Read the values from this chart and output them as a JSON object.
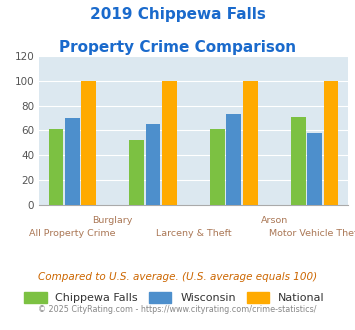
{
  "title_line1": "2019 Chippewa Falls",
  "title_line2": "Property Crime Comparison",
  "title_color": "#1a6acc",
  "group_data": [
    [
      61,
      70,
      100
    ],
    [
      52,
      65,
      100
    ],
    [
      61,
      73,
      100
    ],
    [
      71,
      58,
      100
    ]
  ],
  "color_chippewa": "#7cc142",
  "color_wisconsin": "#4d8fcc",
  "color_national": "#ffaa00",
  "ylim": [
    0,
    120
  ],
  "yticks": [
    0,
    20,
    40,
    60,
    80,
    100,
    120
  ],
  "legend_labels": [
    "Chippewa Falls",
    "Wisconsin",
    "National"
  ],
  "label_top": [
    "",
    "Burglary",
    "Arson",
    ""
  ],
  "label_bot": [
    "All Property Crime",
    "Larceny & Theft",
    "Motor Vehicle Theft",
    ""
  ],
  "footnote1": "Compared to U.S. average. (U.S. average equals 100)",
  "footnote2": "© 2025 CityRating.com - https://www.cityrating.com/crime-statistics/",
  "footnote1_color": "#cc6600",
  "footnote2_color": "#888888",
  "bg_color": "#dce8f0",
  "bar_width": 0.22
}
